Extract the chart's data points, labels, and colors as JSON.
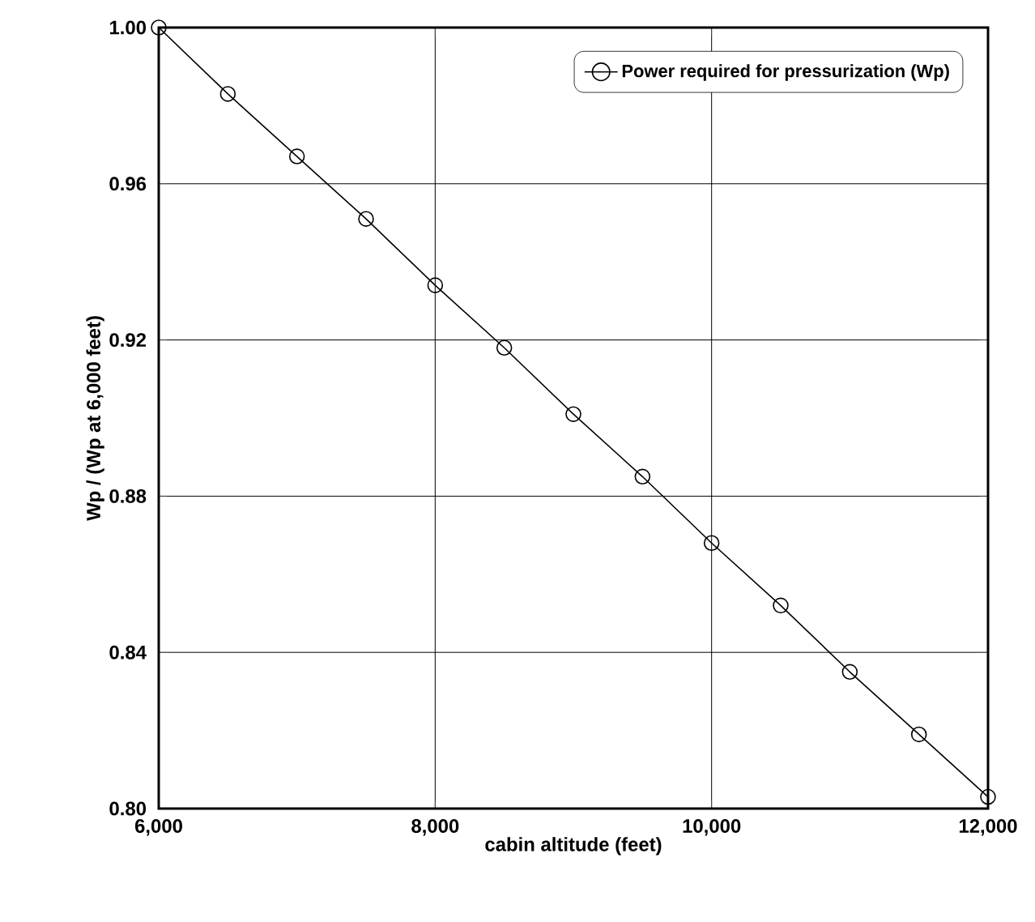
{
  "chart_data": {
    "type": "line",
    "xlabel": "cabin altitude (feet)",
    "ylabel": "Wp / (Wp at 6,000 feet)",
    "x": [
      6000,
      6500,
      7000,
      7500,
      8000,
      8500,
      9000,
      9500,
      10000,
      10500,
      11000,
      11500,
      12000
    ],
    "series": [
      {
        "name": "Power required for pressurization (Wp)",
        "color": "#000000",
        "values": [
          1.0,
          0.983,
          0.967,
          0.951,
          0.934,
          0.918,
          0.901,
          0.885,
          0.868,
          0.852,
          0.835,
          0.819,
          0.803
        ]
      }
    ],
    "xlim": [
      6000,
      12000
    ],
    "ylim": [
      0.8,
      1.0
    ],
    "xticks": [
      {
        "value": 6000,
        "label": "6,000"
      },
      {
        "value": 8000,
        "label": "8,000"
      },
      {
        "value": 10000,
        "label": "10,000"
      },
      {
        "value": 12000,
        "label": "12,000"
      }
    ],
    "yticks": [
      {
        "value": 0.8,
        "label": "0.80"
      },
      {
        "value": 0.84,
        "label": "0.84"
      },
      {
        "value": 0.88,
        "label": "0.88"
      },
      {
        "value": 0.92,
        "label": "0.92"
      },
      {
        "value": 0.96,
        "label": "0.96"
      },
      {
        "value": 1.0,
        "label": "1.00"
      }
    ],
    "grid": true,
    "legend": "top right",
    "marker": "circle",
    "line_style": "solid"
  }
}
